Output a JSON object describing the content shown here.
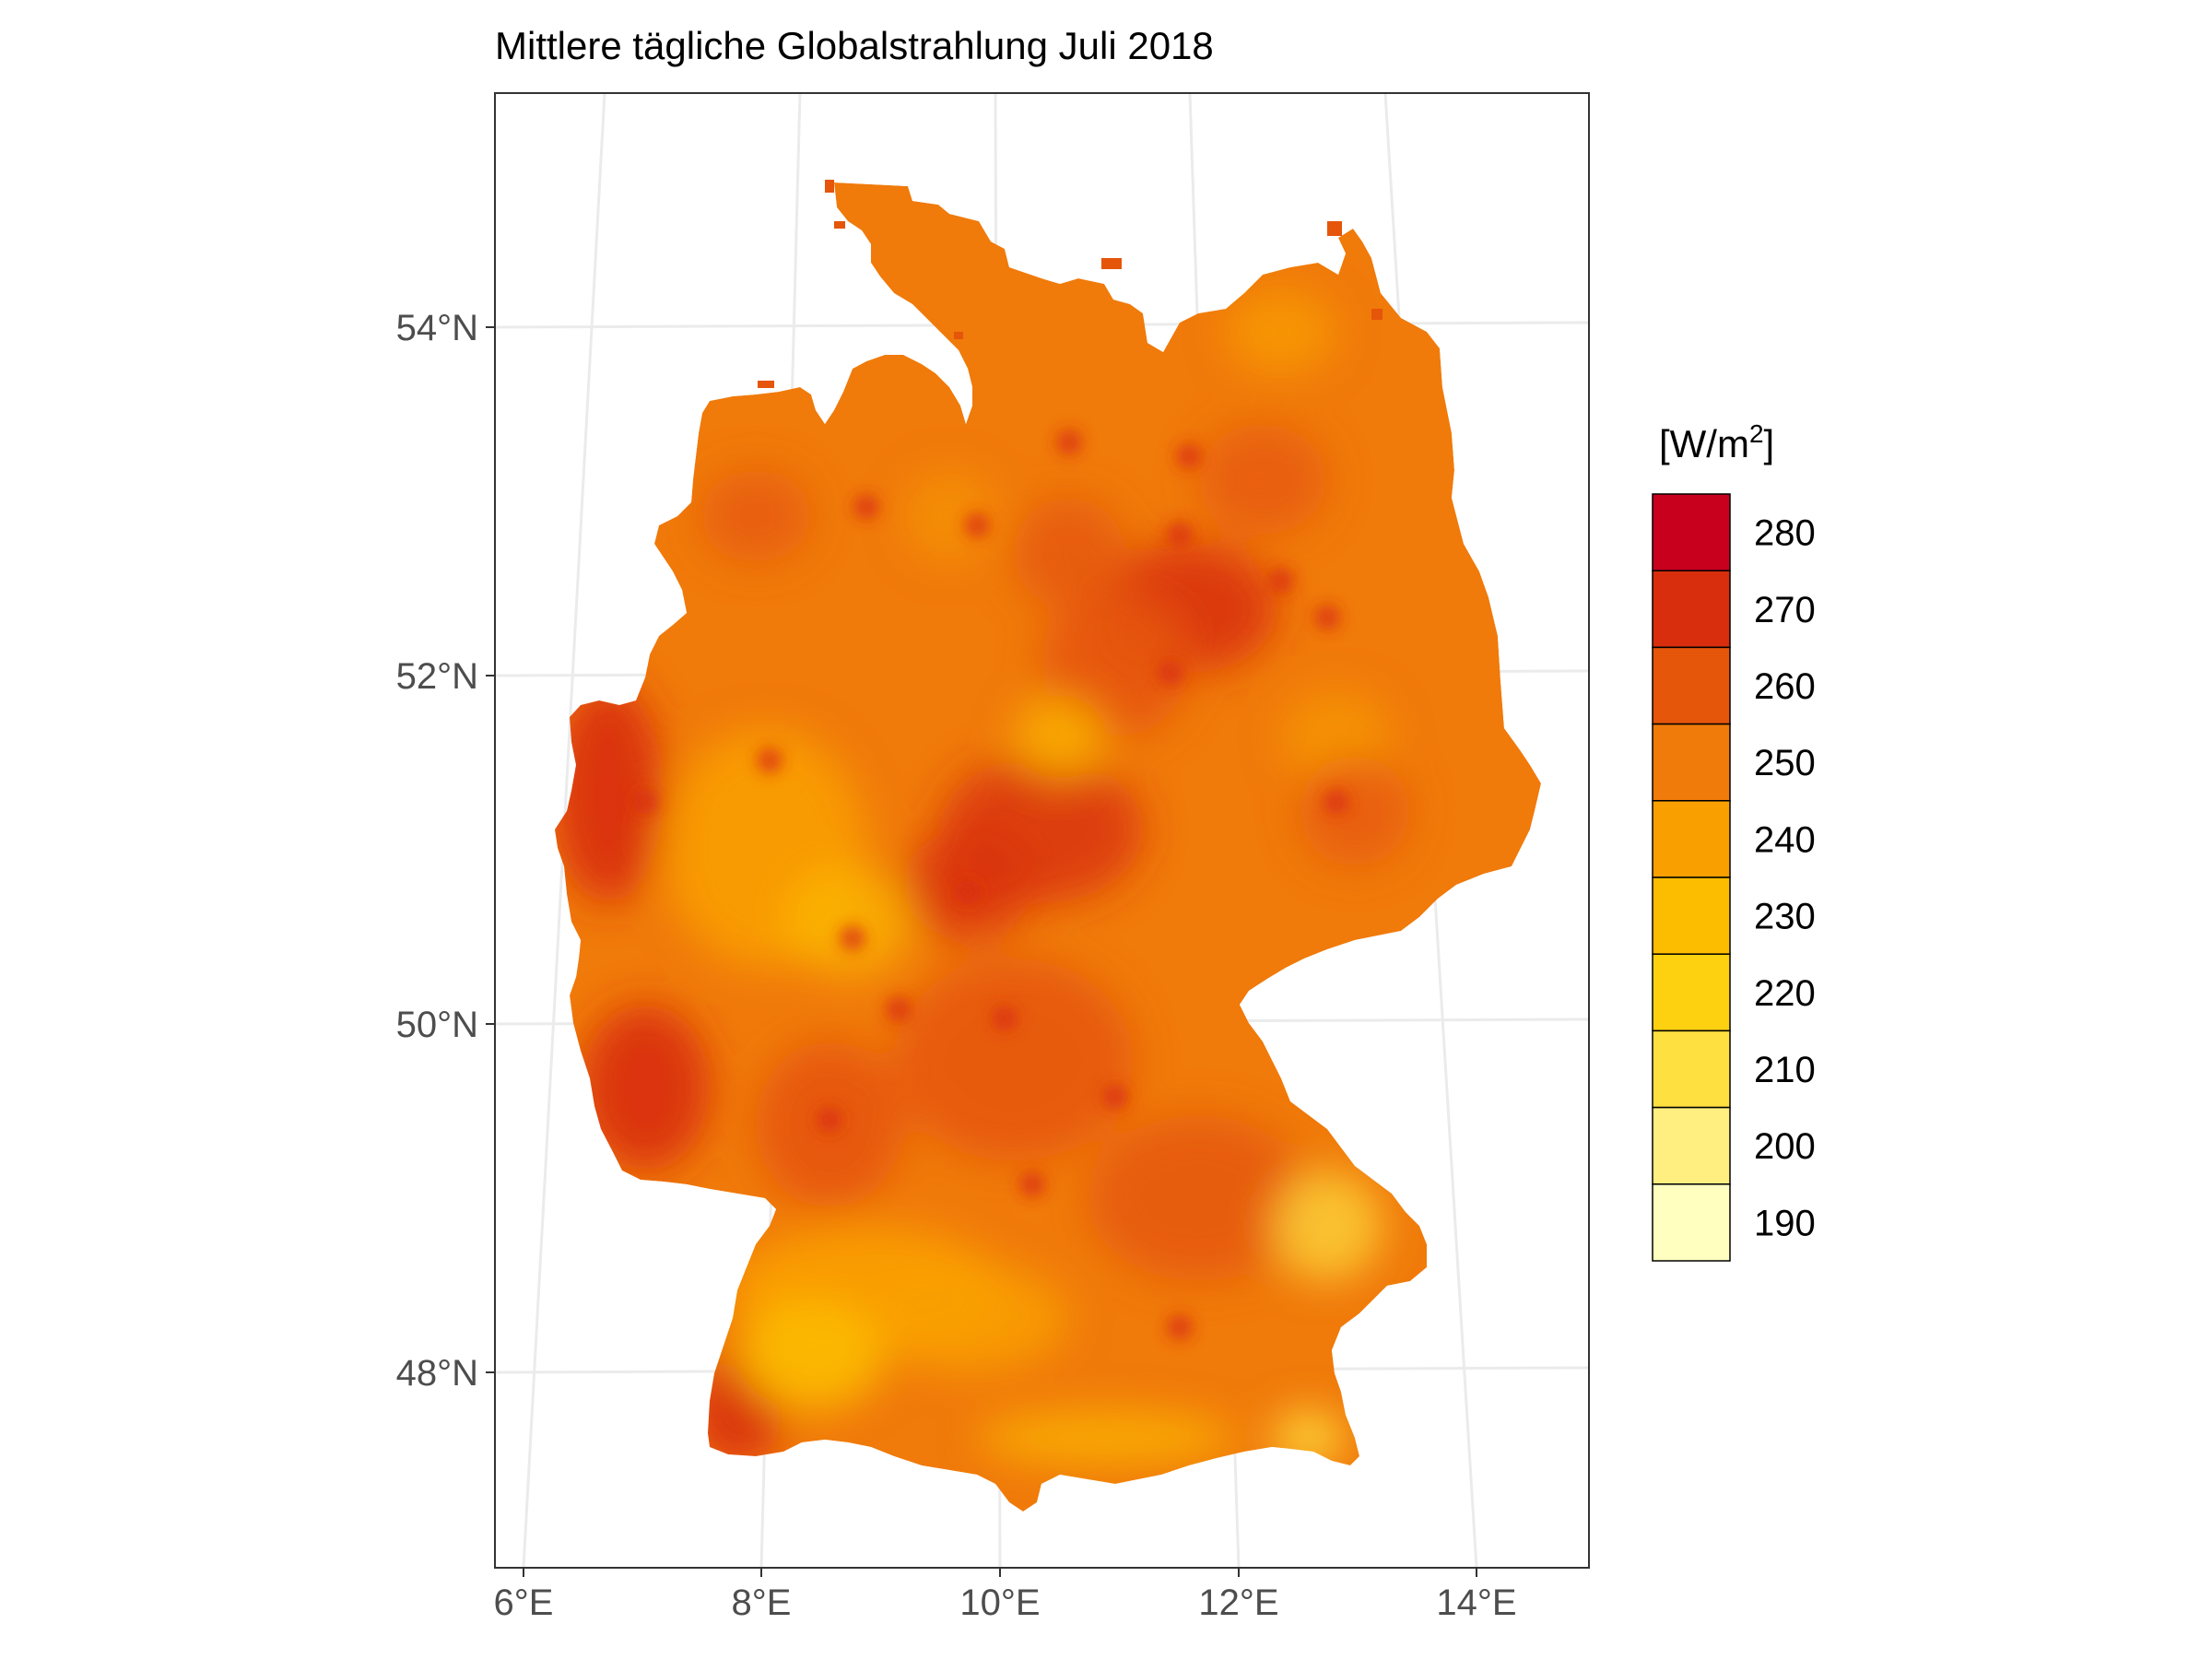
{
  "title": "Mittlere tägliche Globalstrahlung Juli 2018",
  "axes": {
    "x_ticks": [
      "6°E",
      "8°E",
      "10°E",
      "12°E",
      "14°E"
    ],
    "y_ticks": [
      "54°N",
      "52°N",
      "50°N",
      "48°N"
    ]
  },
  "legend": {
    "title_base": "[W/m",
    "title_sup": "2",
    "title_end": "]",
    "items": [
      {
        "label": "280",
        "color": "#C8001E"
      },
      {
        "label": "270",
        "color": "#D82E0E"
      },
      {
        "label": "260",
        "color": "#E5550A"
      },
      {
        "label": "250",
        "color": "#F07A0A"
      },
      {
        "label": "240",
        "color": "#F9A000"
      },
      {
        "label": "230",
        "color": "#FCBC00"
      },
      {
        "label": "220",
        "color": "#FDD010"
      },
      {
        "label": "210",
        "color": "#FEE040"
      },
      {
        "label": "200",
        "color": "#FFEE80"
      },
      {
        "label": "190",
        "color": "#FFFFC0"
      }
    ]
  },
  "map_colors": {
    "base": "#F07A0A",
    "dark_red": "#D82E0E",
    "red": "#E5550A",
    "yellow": "#F9A000",
    "light_yellow": "#FCBC00",
    "pale": "#FEE040",
    "grid": "#EBEBEB",
    "panel_border": "#333333"
  }
}
